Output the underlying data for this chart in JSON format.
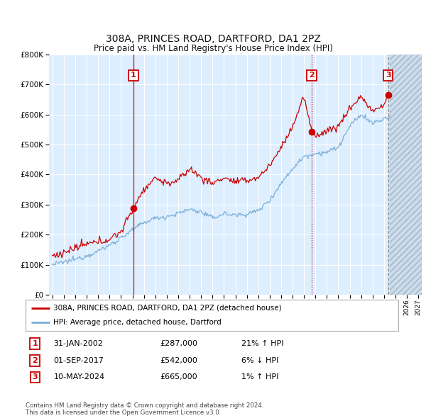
{
  "title": "308A, PRINCES ROAD, DARTFORD, DA1 2PZ",
  "subtitle": "Price paid vs. HM Land Registry's House Price Index (HPI)",
  "ylim": [
    0,
    800000
  ],
  "xlim_start": 1994.7,
  "xlim_end": 2027.3,
  "background_color": "#ddeeff",
  "grid_color": "#ffffff",
  "red_line_color": "#cc0000",
  "blue_line_color": "#7aaed6",
  "vline1_color": "#cc0000",
  "vline1_style": "-",
  "vline2_color": "#cc0000",
  "vline2_style": "--",
  "vline3_color": "#888888",
  "vline3_style": "--",
  "marker_box_color": "#cc0000",
  "legend_label_red": "308A, PRINCES ROAD, DARTFORD, DA1 2PZ (detached house)",
  "legend_label_blue": "HPI: Average price, detached house, Dartford",
  "transaction1_date": "31-JAN-2002",
  "transaction1_price": "£287,000",
  "transaction1_hpi": "21% ↑ HPI",
  "transaction1_x": 2002.08,
  "transaction1_y": 287000,
  "transaction2_date": "01-SEP-2017",
  "transaction2_price": "£542,000",
  "transaction2_hpi": "6% ↓ HPI",
  "transaction2_x": 2017.67,
  "transaction2_y": 542000,
  "transaction3_date": "10-MAY-2024",
  "transaction3_price": "£665,000",
  "transaction3_hpi": "1% ↑ HPI",
  "transaction3_x": 2024.36,
  "transaction3_y": 665000,
  "footer": "Contains HM Land Registry data © Crown copyright and database right 2024.\nThis data is licensed under the Open Government Licence v3.0.",
  "hatch_start": 2024.5
}
